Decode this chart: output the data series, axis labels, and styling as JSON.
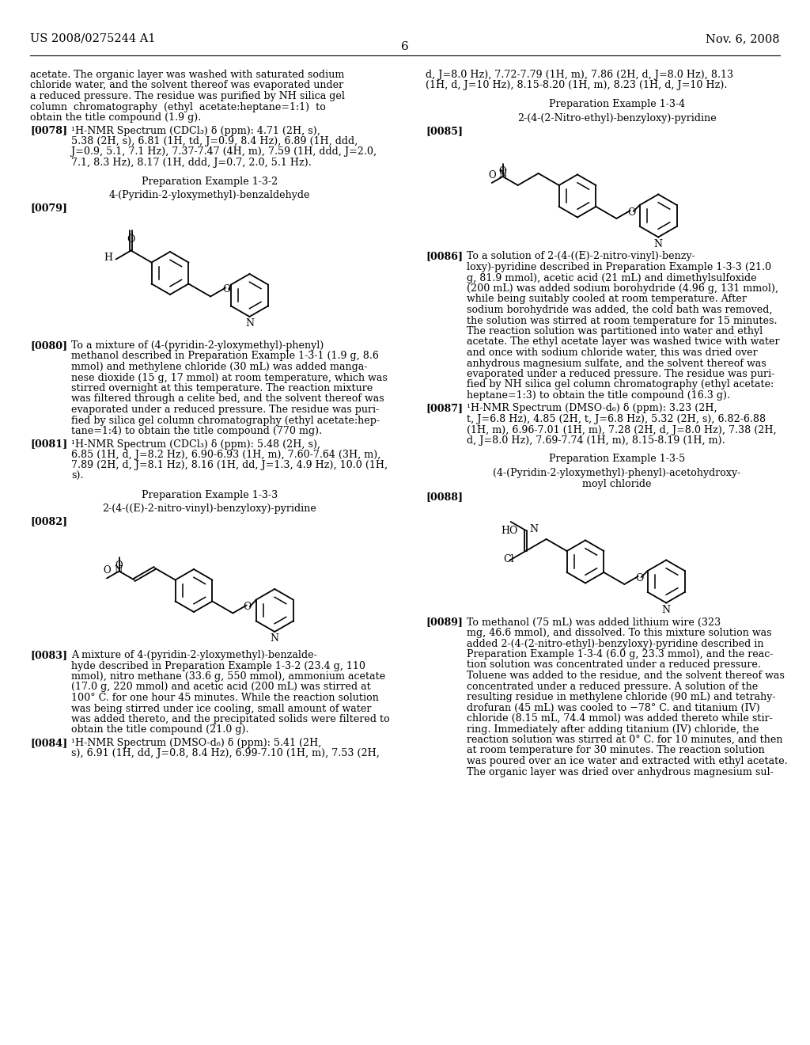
{
  "page_header_left": "US 2008/0275244 A1",
  "page_header_right": "Nov. 6, 2008",
  "page_number": "6",
  "background_color": "#ffffff"
}
